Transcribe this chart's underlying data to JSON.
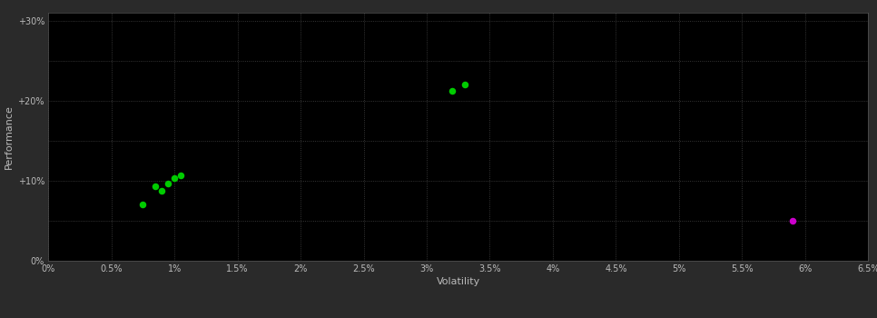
{
  "background_color": "#2a2a2a",
  "plot_bg_color": "#000000",
  "grid_color": "#444444",
  "green_points": [
    [
      0.0075,
      0.07
    ],
    [
      0.0085,
      0.093
    ],
    [
      0.009,
      0.088
    ],
    [
      0.0095,
      0.097
    ],
    [
      0.01,
      0.103
    ],
    [
      0.0105,
      0.107
    ],
    [
      0.032,
      0.212
    ],
    [
      0.033,
      0.22
    ]
  ],
  "magenta_points": [
    [
      0.059,
      0.05
    ]
  ],
  "green_color": "#00cc00",
  "magenta_color": "#cc00cc",
  "x_label": "Volatility",
  "y_label": "Performance",
  "x_ticks": [
    0.0,
    0.005,
    0.01,
    0.015,
    0.02,
    0.025,
    0.03,
    0.035,
    0.04,
    0.045,
    0.05,
    0.055,
    0.06,
    0.065
  ],
  "x_tick_labels": [
    "0%",
    "0.5%",
    "1%",
    "1.5%",
    "2%",
    "2.5%",
    "3%",
    "3.5%",
    "4%",
    "4.5%",
    "5%",
    "5.5%",
    "6%",
    "6.5%"
  ],
  "y_ticks": [
    0.0,
    0.05,
    0.1,
    0.15,
    0.2,
    0.25,
    0.3
  ],
  "y_tick_labels": [
    "0%",
    "",
    "+10%",
    "",
    "+20%",
    "",
    "+30%"
  ],
  "xlim": [
    0.0,
    0.065
  ],
  "ylim": [
    0.0,
    0.31
  ],
  "marker_size": 7,
  "tick_color": "#bbbbbb",
  "label_color": "#bbbbbb",
  "tick_fontsize": 7,
  "label_fontsize": 8,
  "spine_color": "#555555"
}
